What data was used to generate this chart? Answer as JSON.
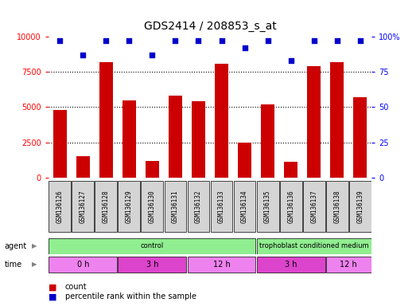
{
  "title": "GDS2414 / 208853_s_at",
  "samples": [
    "GSM136126",
    "GSM136127",
    "GSM136128",
    "GSM136129",
    "GSM136130",
    "GSM136131",
    "GSM136132",
    "GSM136133",
    "GSM136134",
    "GSM136135",
    "GSM136136",
    "GSM136137",
    "GSM136138",
    "GSM136139"
  ],
  "counts": [
    4800,
    1500,
    8200,
    5500,
    1200,
    5800,
    5400,
    8100,
    2500,
    5200,
    1100,
    7900,
    8200,
    5700
  ],
  "percentile_ranks": [
    97,
    87,
    97,
    97,
    87,
    97,
    97,
    97,
    92,
    97,
    83,
    97,
    97,
    97
  ],
  "ylim_left": [
    0,
    10000
  ],
  "ylim_right": [
    0,
    100
  ],
  "yticks_left": [
    0,
    2500,
    5000,
    7500,
    10000
  ],
  "yticks_right": [
    0,
    25,
    50,
    75,
    100
  ],
  "bar_color": "#cc0000",
  "dot_color": "#0000cc",
  "sample_box_bg": "#d4d4d4",
  "agent_color": "#90ee90",
  "time_colors": [
    "#ee82ee",
    "#dd44cc",
    "#ee82ee",
    "#dd44cc",
    "#ee82ee"
  ],
  "agent_spans": [
    [
      0,
      8,
      "control"
    ],
    [
      9,
      13,
      "trophoblast conditioned medium"
    ]
  ],
  "time_spans": [
    [
      0,
      2,
      "0 h"
    ],
    [
      3,
      5,
      "3 h"
    ],
    [
      6,
      8,
      "12 h"
    ],
    [
      9,
      11,
      "3 h"
    ],
    [
      12,
      13,
      "12 h"
    ]
  ],
  "legend_count_color": "#cc0000",
  "legend_dot_color": "#0000cc"
}
